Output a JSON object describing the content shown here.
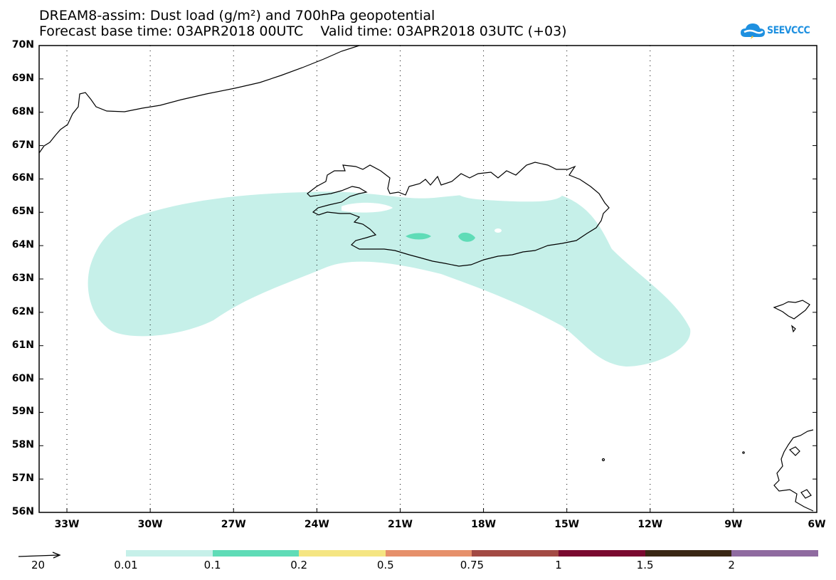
{
  "title": {
    "line1": "DREAM8-assim: Dust load (g/m²) and 700hPa geopotential",
    "line2": "Forecast base time: 03APR2018 00UTC    Valid time: 03APR2018 03UTC (+03)"
  },
  "logo": {
    "text": "SEEVCCC",
    "icon": "cloud-icon",
    "color": "#1e90e0"
  },
  "map": {
    "lat_labels": [
      "70N",
      "69N",
      "68N",
      "67N",
      "66N",
      "65N",
      "64N",
      "63N",
      "62N",
      "61N",
      "60N",
      "59N",
      "58N",
      "57N",
      "56N"
    ],
    "lon_labels": [
      "33W",
      "30W",
      "27W",
      "24W",
      "21W",
      "18W",
      "15W",
      "12W",
      "9W",
      "6W"
    ],
    "lat_range": [
      56,
      70
    ],
    "lon_range": [
      -34,
      -6
    ],
    "grid": "dotted",
    "dust_colors": {
      "low": "#c6f0e9",
      "mid": "#5fdcb7"
    }
  },
  "legend": {
    "vector_label": "20",
    "levels": [
      "0.01",
      "0.1",
      "0.2",
      "0.5",
      "0.75",
      "1",
      "1.5",
      "2"
    ],
    "colors": [
      "#c6f0e9",
      "#5fdcb7",
      "#f5e582",
      "#e6906b",
      "#a34a44",
      "#7a0a30",
      "#3a2714",
      "#8f6ba0"
    ]
  }
}
